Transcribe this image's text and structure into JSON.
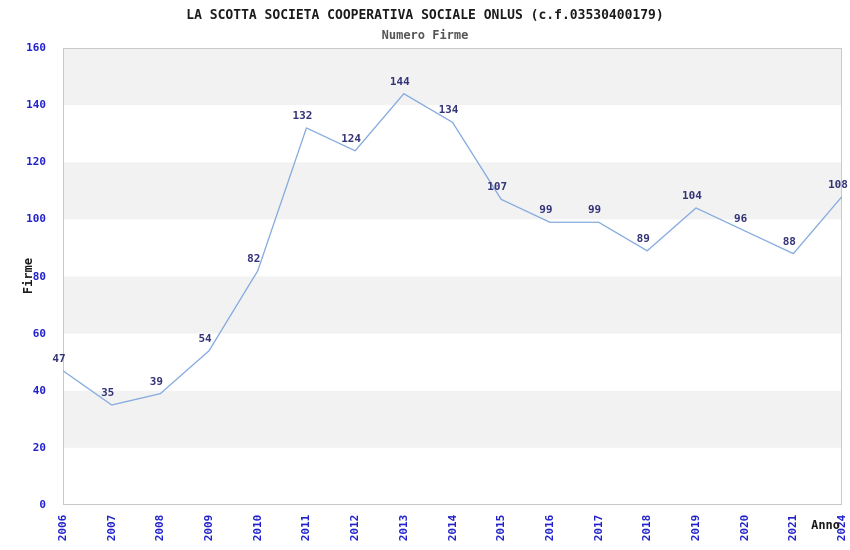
{
  "chart_data": {
    "type": "line",
    "title": "LA SCOTTA SOCIETA COOPERATIVA SOCIALE ONLUS (c.f.03530400179)",
    "subtitle": "Numero Firme",
    "xlabel": "Anno",
    "ylabel": "Firme",
    "categories": [
      "2006",
      "2007",
      "2008",
      "2009",
      "2010",
      "2011",
      "2012",
      "2013",
      "2014",
      "2015",
      "2016",
      "2017",
      "2018",
      "2019",
      "2020",
      "2021",
      "2024"
    ],
    "values": [
      47,
      35,
      39,
      54,
      82,
      132,
      124,
      144,
      134,
      107,
      99,
      99,
      89,
      104,
      96,
      88,
      108
    ],
    "ylim": [
      0,
      160
    ],
    "ytick_step": 20,
    "grid": "alternating-bands",
    "legend": "none",
    "colors": {
      "line": "#85aade",
      "value_label": "#333377",
      "tick_label": "#2222cc",
      "band": "#f2f2f2",
      "band_alt": "#ffffff",
      "frame": "#c9c9c9",
      "title": "#1a1a1a",
      "subtitle": "#555555",
      "background": "#ffffff"
    }
  }
}
